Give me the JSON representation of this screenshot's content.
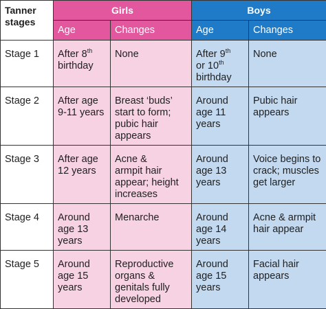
{
  "header": {
    "corner_label": "Tanner\nstages",
    "girls_label": "Girls",
    "boys_label": "Boys",
    "age_label": "Age",
    "changes_label": "Changes"
  },
  "colors": {
    "girls_header": "#e2579e",
    "girls_cell": "#f7d2e3",
    "boys_header": "#1f7ac7",
    "boys_cell": "#c2d9f0",
    "border": "#333333"
  },
  "rows": [
    {
      "stage": "Stage 1",
      "girls_age_pre": "After 8",
      "girls_age_sup": "th",
      "girls_age_post": "\nbirthday",
      "girls_changes": "None",
      "boys_age_pre": "After 9",
      "boys_age_sup": "th",
      "boys_age_mid": "\nor 10",
      "boys_age_sup2": "th",
      "boys_age_post": "\nbirthday",
      "boys_changes": "None"
    },
    {
      "stage": "Stage 2",
      "girls_age": "After age\n9-11 years",
      "girls_changes": "Breast ‘buds’\nstart to form;\npubic hair\nappears",
      "boys_age": "Around\nage 11\nyears",
      "boys_changes": "Pubic hair\nappears"
    },
    {
      "stage": "Stage 3",
      "girls_age": "After age\n12 years",
      "girls_changes": "Acne &\narmpit hair\nappear; height\nincreases",
      "boys_age": "Around\nage 13\nyears",
      "boys_changes": "Voice begins to\ncrack; muscles\nget larger"
    },
    {
      "stage": "Stage 4",
      "girls_age": "Around\nage 13\nyears",
      "girls_changes": "Menarche",
      "boys_age": "Around\nage 14\nyears",
      "boys_changes": "Acne & armpit\nhair appear"
    },
    {
      "stage": "Stage 5",
      "girls_age": "Around\nage 15\nyears",
      "girls_changes": "Reproductive\norgans &\ngenitals fully\ndeveloped",
      "boys_age": "Around\nage 15\nyears",
      "boys_changes": "Facial hair\nappears"
    }
  ]
}
